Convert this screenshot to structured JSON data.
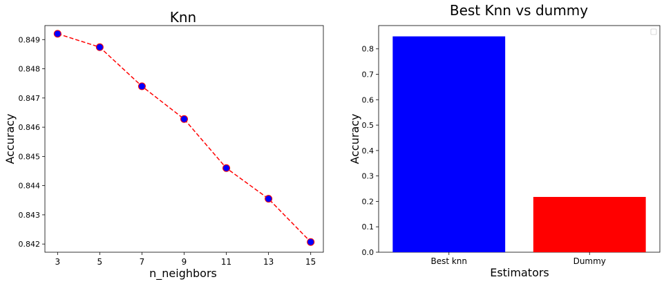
{
  "chart_data": [
    {
      "type": "line",
      "title": "Knn",
      "xlabel": "n_neighbors",
      "ylabel": "Accuracy",
      "x": [
        3,
        5,
        7,
        9,
        11,
        13,
        15
      ],
      "xticks": [
        "3",
        "5",
        "7",
        "9",
        "11",
        "13",
        "15"
      ],
      "xlim": [
        2.4,
        15.6
      ],
      "ylim": [
        0.84172,
        0.84948
      ],
      "yticks": [
        0.842,
        0.843,
        0.844,
        0.845,
        0.846,
        0.847,
        0.848,
        0.849
      ],
      "ytick_labels": [
        "0.842",
        "0.843",
        "0.844",
        "0.845",
        "0.846",
        "0.847",
        "0.848",
        "0.849"
      ],
      "series": [
        {
          "values": [
            0.8492,
            0.84874,
            0.8474,
            0.84628,
            0.8446,
            0.84355,
            0.84207
          ],
          "line_color": "#ff0000",
          "line_style": "dashed",
          "marker": "circle",
          "marker_face": "#0000ff",
          "marker_edge": "#ff0000"
        }
      ],
      "grid": false
    },
    {
      "type": "bar",
      "title": "Best Knn vs dummy",
      "xlabel": "Estimators",
      "ylabel": "Accuracy",
      "categories": [
        "Best knn",
        "Dummy"
      ],
      "values": [
        0.8492,
        0.2175
      ],
      "colors": [
        "#0000ff",
        "#ff0000"
      ],
      "ylim": [
        0,
        0.8917
      ],
      "yticks": [
        0,
        0.1,
        0.2,
        0.3,
        0.4,
        0.5,
        0.6,
        0.7,
        0.8
      ],
      "ytick_labels": [
        "0.0",
        "0.1",
        "0.2",
        "0.3",
        "0.4",
        "0.5",
        "0.6",
        "0.7",
        "0.8"
      ],
      "legend": "top-right (empty)",
      "grid": false
    }
  ]
}
